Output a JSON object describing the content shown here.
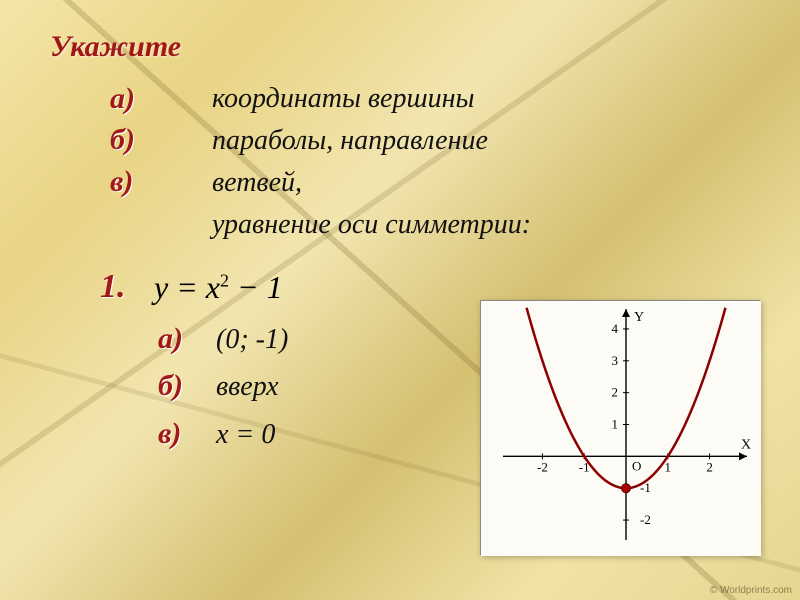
{
  "title": "Укажите",
  "bullets": {
    "a": "а)",
    "b": "б)",
    "v": "в)"
  },
  "question": {
    "line1": "координаты вершины",
    "line2": "параболы, направление",
    "line3": "ветвей,",
    "line4": "уравнение оси симметрии:"
  },
  "problem": {
    "number": "1.",
    "formula_lhs": "y = x",
    "formula_exp": "2",
    "formula_tail": " − 1"
  },
  "answers": {
    "a": "(0; -1)",
    "b": "вверх",
    "v": "x = 0"
  },
  "chart": {
    "type": "line",
    "background_color": "#fdfbf5",
    "axis_color": "#000000",
    "curve_color": "#8b0000",
    "curve_width": 2.5,
    "vertex_marker_color": "#b00000",
    "tick_label_fontsize": 13,
    "axis_label_fontsize": 14,
    "x_label": "X",
    "y_label": "Y",
    "xlim": [
      -2.8,
      2.8
    ],
    "ylim": [
      -2.5,
      4.5
    ],
    "x_ticks": [
      -2,
      -1,
      1,
      2
    ],
    "y_ticks": [
      -2,
      -1,
      1,
      2,
      3,
      4
    ],
    "origin_label": "O",
    "vertex": [
      0,
      -1
    ],
    "series": {
      "x": [
        -2.3,
        -2.0,
        -1.5,
        -1.0,
        -0.5,
        0.0,
        0.5,
        1.0,
        1.5,
        2.0,
        2.3
      ],
      "y": [
        4.29,
        3.0,
        1.25,
        0.0,
        -0.75,
        -1.0,
        -0.75,
        0.0,
        1.25,
        3.0,
        4.29
      ]
    }
  },
  "watermark": "© Worldprints.com",
  "colors": {
    "heading": "#a01818",
    "text": "#111111"
  }
}
